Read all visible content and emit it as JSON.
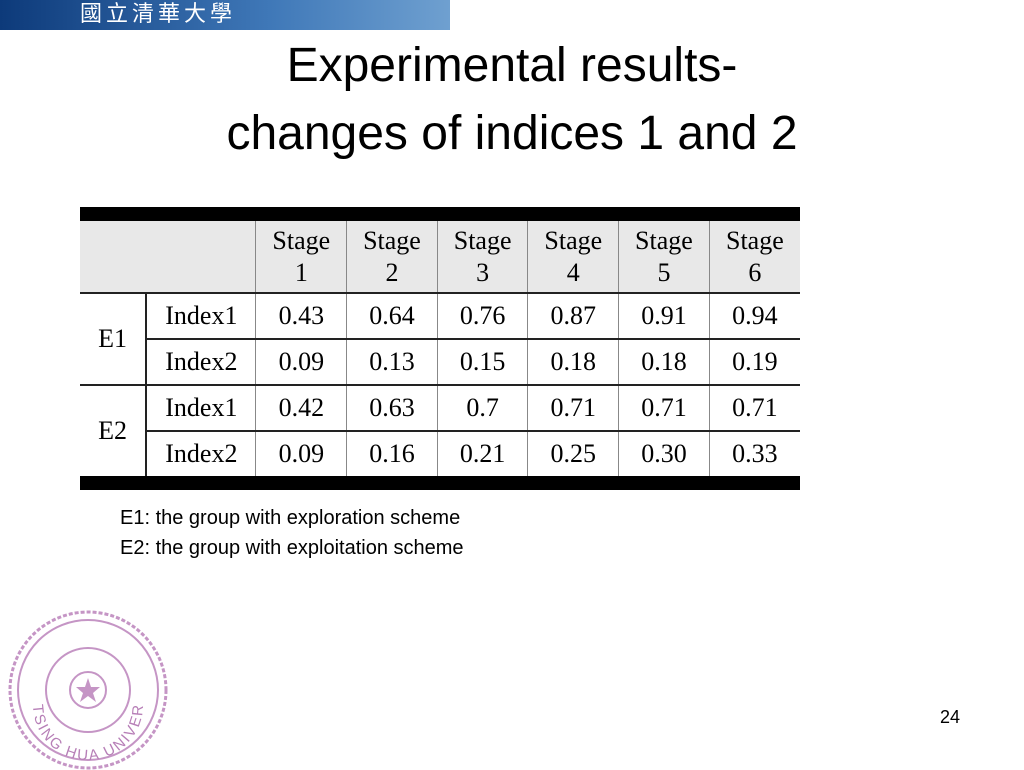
{
  "header": {
    "logo_text": "國立清華大學"
  },
  "title": {
    "line1": "Experimental results-",
    "line2": "changes of indices 1 and 2"
  },
  "table": {
    "columns": [
      "Stage 1",
      "Stage 2",
      "Stage 3",
      "Stage 4",
      "Stage 5",
      "Stage 6"
    ],
    "groups": [
      {
        "name": "E1",
        "rows": [
          {
            "label": "Index1",
            "values": [
              "0.43",
              "0.64",
              "0.76",
              "0.87",
              "0.91",
              "0.94"
            ]
          },
          {
            "label": "Index2",
            "values": [
              "0.09",
              "0.13",
              "0.15",
              "0.18",
              "0.18",
              "0.19"
            ]
          }
        ]
      },
      {
        "name": "E2",
        "rows": [
          {
            "label": "Index1",
            "values": [
              "0.42",
              "0.63",
              "0.7",
              "0.71",
              "0.71",
              "0.71"
            ]
          },
          {
            "label": "Index2",
            "values": [
              "0.09",
              "0.16",
              "0.21",
              "0.25",
              "0.30",
              "0.33"
            ]
          }
        ]
      }
    ]
  },
  "notes": [
    "E1: the group with exploration scheme",
    "E2: the group with exploitation scheme"
  ],
  "seal": {
    "text": "TSING HUA UNIVERSITY"
  },
  "page_number": "24"
}
